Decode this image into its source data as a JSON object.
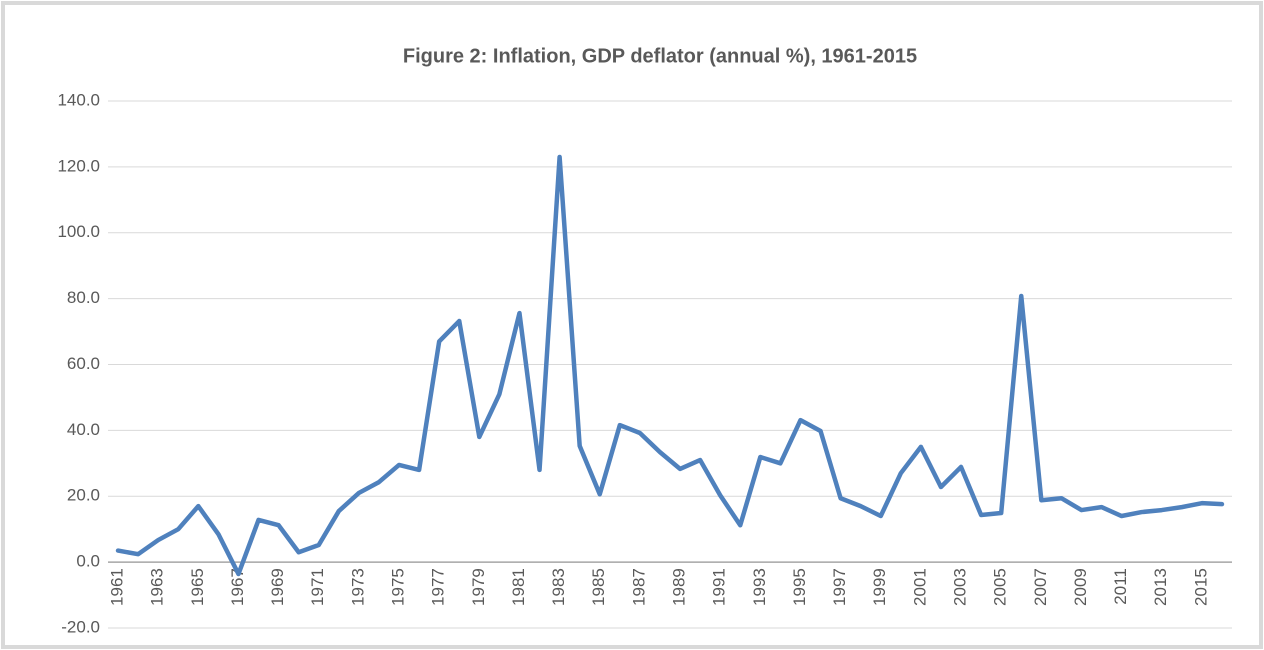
{
  "chart_data": {
    "type": "line",
    "title": "Figure 2: Inflation, GDP deflator (annual %), 1961-2015",
    "categories": [
      "1961",
      null,
      "1963",
      null,
      "1965",
      null,
      "1967",
      null,
      "1969",
      null,
      "1971",
      null,
      "1973",
      null,
      "1975",
      null,
      "1977",
      null,
      "1979",
      null,
      "1981",
      null,
      "1983",
      null,
      "1985",
      null,
      "1987",
      null,
      "1989",
      null,
      "1991",
      null,
      "1993",
      null,
      "1995",
      null,
      "1997",
      null,
      "1999",
      null,
      "2001",
      null,
      "2003",
      null,
      "2005",
      null,
      "2007",
      null,
      "2009",
      null,
      "2011",
      null,
      "2013",
      null,
      "2015",
      null
    ],
    "series": [
      {
        "name": "Inflation, GDP deflator (annual %)",
        "color": "#4f81bd",
        "values": [
          3.5,
          2.4,
          6.7,
          10,
          17,
          8.5,
          -3.6,
          12.8,
          11.2,
          3,
          5.2,
          15.5,
          21,
          24.3,
          29.5,
          28,
          67,
          73.2,
          38,
          51,
          75.6,
          28,
          123,
          35.3,
          20.6,
          41.6,
          39.2,
          33.4,
          28.3,
          31,
          20.3,
          11.2,
          31.9,
          30,
          43.1,
          39.8,
          19.4,
          17,
          14,
          27,
          35,
          22.8,
          28.9,
          14.3,
          14.9,
          80.8,
          18.8,
          19.4,
          15.8,
          16.7,
          14,
          15.2,
          15.8,
          16.7,
          17.9,
          17.6
        ]
      }
    ],
    "ylim": [
      -20,
      140
    ],
    "yticks": [
      {
        "value": -20,
        "label": "-20.0"
      },
      {
        "value": 0,
        "label": "0.0"
      },
      {
        "value": 20,
        "label": "20.0"
      },
      {
        "value": 40,
        "label": "40.0"
      },
      {
        "value": 60,
        "label": "60.0"
      },
      {
        "value": 80,
        "label": "80.0"
      },
      {
        "value": 100,
        "label": "100.0"
      },
      {
        "value": 120,
        "label": "120.0"
      },
      {
        "value": 140,
        "label": "140.0"
      }
    ],
    "grid": true
  }
}
